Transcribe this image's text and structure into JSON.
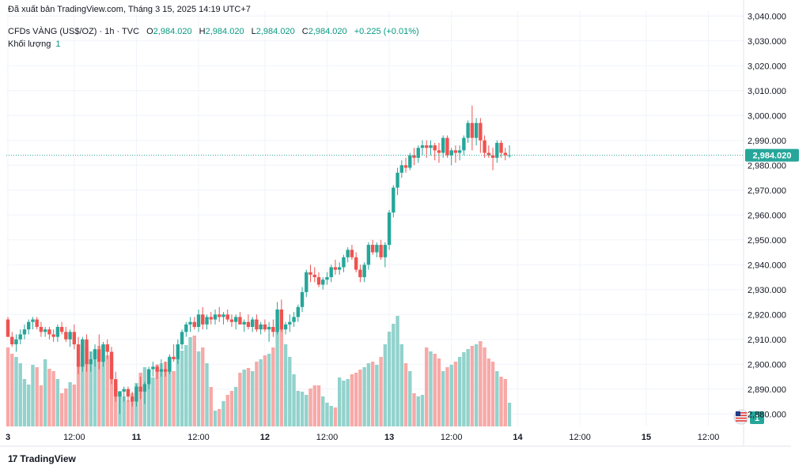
{
  "header": {
    "published": "Đã xuất bản TradingView.com, Tháng 3 15, 2025 14:19 UTC+7",
    "symbol": "CFDs VÀNG (US$/OZ) · 1h · TVC",
    "open_label": "O",
    "open": "2,984.020",
    "high_label": "H",
    "high": "2,984.020",
    "low_label": "L",
    "low": "2,984.020",
    "close_label": "C",
    "close": "2,984.020",
    "change": "+0.225 (+0.01%)",
    "volume_label": "Khối lượng",
    "volume_value": "1"
  },
  "brand": {
    "logo_glyph": "17",
    "name": "TradingView"
  },
  "chart_data": {
    "type": "candlestick",
    "y_ticks": [
      "3,040.000",
      "3,030.000",
      "3,020.000",
      "3,010.000",
      "3,000.000",
      "2,990.000",
      "2,980.000",
      "2,970.000",
      "2,960.000",
      "2,950.000",
      "2,940.000",
      "2,930.000",
      "2,920.000",
      "2,910.000",
      "2,900.000",
      "2,890.000",
      "2,880.000"
    ],
    "ylim": [
      2875,
      3042
    ],
    "x_ticks": [
      "3",
      "12:00",
      "11",
      "12:00",
      "12",
      "12:00",
      "13",
      "12:00",
      "14",
      "12:00",
      "15",
      "12:00"
    ],
    "last_price": 2984.02,
    "last_price_label": "2,984.020",
    "volume_badge": "1",
    "colors": {
      "up": "#26a69a",
      "down": "#ef5350",
      "vol_up": "#92d2cc",
      "vol_down": "#f7a9a7",
      "grid": "#f0f3fa",
      "axis_text": "#131722"
    },
    "candles": [
      [
        2918,
        2919,
        2911,
        2911
      ],
      [
        2911,
        2913,
        2907,
        2908
      ],
      [
        2908,
        2912,
        2905,
        2910
      ],
      [
        2910,
        2914,
        2908,
        2912
      ],
      [
        2912,
        2916,
        2910,
        2914
      ],
      [
        2914,
        2918,
        2912,
        2917
      ],
      [
        2917,
        2919,
        2914,
        2918
      ],
      [
        2918,
        2919,
        2914,
        2915
      ],
      [
        2915,
        2917,
        2911,
        2913
      ],
      [
        2913,
        2915,
        2911,
        2914
      ],
      [
        2914,
        2915,
        2910,
        2912
      ],
      [
        2912,
        2914,
        2909,
        2911
      ],
      [
        2911,
        2916,
        2909,
        2915
      ],
      [
        2915,
        2917,
        2912,
        2913
      ],
      [
        2913,
        2915,
        2909,
        2910
      ],
      [
        2910,
        2914,
        2907,
        2913
      ],
      [
        2913,
        2916,
        2906,
        2908
      ],
      [
        2908,
        2911,
        2896,
        2899
      ],
      [
        2899,
        2911,
        2897,
        2910
      ],
      [
        2910,
        2912,
        2897,
        2900
      ],
      [
        2900,
        2905,
        2897,
        2902
      ],
      [
        2902,
        2908,
        2899,
        2906
      ],
      [
        2906,
        2912,
        2898,
        2901
      ],
      [
        2901,
        2909,
        2899,
        2908
      ],
      [
        2908,
        2910,
        2902,
        2905
      ],
      [
        2905,
        2907,
        2892,
        2894
      ],
      [
        2894,
        2897,
        2885,
        2887
      ],
      [
        2887,
        2889,
        2880,
        2889
      ],
      [
        2889,
        2891,
        2885,
        2890
      ],
      [
        2890,
        2891,
        2885,
        2887
      ],
      [
        2887,
        2889,
        2883,
        2885
      ],
      [
        2885,
        2892,
        2883,
        2891
      ],
      [
        2891,
        2895,
        2886,
        2889
      ],
      [
        2889,
        2893,
        2884,
        2892
      ],
      [
        2892,
        2899,
        2890,
        2898
      ],
      [
        2898,
        2901,
        2895,
        2899
      ],
      [
        2899,
        2900,
        2894,
        2897
      ],
      [
        2897,
        2902,
        2895,
        2898
      ],
      [
        2898,
        2901,
        2895,
        2897
      ],
      [
        2897,
        2904,
        2896,
        2903
      ],
      [
        2903,
        2908,
        2901,
        2902
      ],
      [
        2902,
        2910,
        2900,
        2908
      ],
      [
        2908,
        2914,
        2906,
        2913
      ],
      [
        2913,
        2917,
        2911,
        2916
      ],
      [
        2916,
        2919,
        2913,
        2917
      ],
      [
        2917,
        2919,
        2914,
        2915
      ],
      [
        2915,
        2922,
        2913,
        2920
      ],
      [
        2920,
        2923,
        2914,
        2916
      ],
      [
        2916,
        2920,
        2914,
        2919
      ],
      [
        2919,
        2921,
        2916,
        2918
      ],
      [
        2918,
        2922,
        2916,
        2920
      ],
      [
        2920,
        2923,
        2917,
        2919
      ],
      [
        2919,
        2921,
        2916,
        2920
      ],
      [
        2920,
        2922,
        2917,
        2918
      ],
      [
        2918,
        2920,
        2915,
        2917
      ],
      [
        2917,
        2920,
        2914,
        2919
      ],
      [
        2919,
        2921,
        2916,
        2916
      ],
      [
        2916,
        2918,
        2913,
        2917
      ],
      [
        2917,
        2920,
        2914,
        2915
      ],
      [
        2915,
        2919,
        2913,
        2918
      ],
      [
        2918,
        2920,
        2913,
        2914
      ],
      [
        2914,
        2917,
        2912,
        2916
      ],
      [
        2916,
        2918,
        2913,
        2914
      ],
      [
        2914,
        2917,
        2909,
        2915
      ],
      [
        2915,
        2918,
        2911,
        2913
      ],
      [
        2913,
        2925,
        2912,
        2922
      ],
      [
        2922,
        2926,
        2913,
        2914
      ],
      [
        2914,
        2917,
        2912,
        2916
      ],
      [
        2916,
        2920,
        2913,
        2917
      ],
      [
        2917,
        2921,
        2915,
        2919
      ],
      [
        2919,
        2924,
        2917,
        2923
      ],
      [
        2923,
        2931,
        2921,
        2929
      ],
      [
        2929,
        2938,
        2927,
        2937
      ],
      [
        2937,
        2940,
        2933,
        2936
      ],
      [
        2936,
        2939,
        2933,
        2935
      ],
      [
        2935,
        2937,
        2931,
        2932
      ],
      [
        2932,
        2935,
        2930,
        2934
      ],
      [
        2934,
        2937,
        2932,
        2935
      ],
      [
        2935,
        2940,
        2933,
        2939
      ],
      [
        2939,
        2942,
        2936,
        2938
      ],
      [
        2938,
        2941,
        2936,
        2939
      ],
      [
        2939,
        2944,
        2937,
        2943
      ],
      [
        2943,
        2947,
        2941,
        2946
      ],
      [
        2946,
        2948,
        2942,
        2943
      ],
      [
        2943,
        2945,
        2937,
        2938
      ],
      [
        2938,
        2940,
        2933,
        2935
      ],
      [
        2935,
        2941,
        2933,
        2940
      ],
      [
        2940,
        2949,
        2938,
        2948
      ],
      [
        2948,
        2950,
        2944,
        2945
      ],
      [
        2945,
        2949,
        2943,
        2948
      ],
      [
        2948,
        2950,
        2942,
        2943
      ],
      [
        2943,
        2949,
        2939,
        2948
      ],
      [
        2948,
        2962,
        2946,
        2961
      ],
      [
        2961,
        2972,
        2959,
        2971
      ],
      [
        2971,
        2979,
        2968,
        2977
      ],
      [
        2977,
        2982,
        2975,
        2980
      ],
      [
        2980,
        2983,
        2977,
        2979
      ],
      [
        2979,
        2985,
        2978,
        2984
      ],
      [
        2984,
        2987,
        2980,
        2983
      ],
      [
        2983,
        2988,
        2981,
        2987
      ],
      [
        2987,
        2990,
        2984,
        2988
      ],
      [
        2988,
        2990,
        2983,
        2987
      ],
      [
        2987,
        2990,
        2984,
        2988
      ],
      [
        2988,
        2989,
        2982,
        2986
      ],
      [
        2986,
        2989,
        2981,
        2985
      ],
      [
        2985,
        2992,
        2983,
        2991
      ],
      [
        2991,
        2992,
        2983,
        2984
      ],
      [
        2984,
        2987,
        2980,
        2986
      ],
      [
        2986,
        2988,
        2981,
        2985
      ],
      [
        2985,
        2988,
        2982,
        2986
      ],
      [
        2986,
        2992,
        2984,
        2991
      ],
      [
        2991,
        2998,
        2989,
        2997
      ],
      [
        2997,
        3004,
        2986,
        2991
      ],
      [
        2991,
        2999,
        2988,
        2997
      ],
      [
        2997,
        2999,
        2985,
        2990
      ],
      [
        2990,
        2992,
        2983,
        2985
      ],
      [
        2985,
        2988,
        2983,
        2984
      ],
      [
        2984,
        2987,
        2978,
        2983
      ],
      [
        2983,
        2990,
        2981,
        2989
      ],
      [
        2989,
        2990,
        2983,
        2985
      ],
      [
        2985,
        2987,
        2982,
        2984
      ],
      [
        2984,
        2988,
        2983,
        2984
      ]
    ],
    "volumes": [
      100,
      92,
      88,
      80,
      60,
      53,
      78,
      75,
      52,
      85,
      73,
      70,
      60,
      42,
      48,
      56,
      53,
      80,
      93,
      100,
      95,
      98,
      102,
      103,
      90,
      88,
      50,
      45,
      38,
      33,
      42,
      55,
      68,
      75,
      60,
      62,
      78,
      80,
      82,
      86,
      70,
      85,
      96,
      103,
      113,
      115,
      95,
      100,
      80,
      50,
      20,
      22,
      32,
      40,
      45,
      50,
      68,
      72,
      74,
      70,
      82,
      85,
      90,
      92,
      100,
      120,
      124,
      104,
      88,
      66,
      45,
      44,
      40,
      48,
      52,
      52,
      38,
      30,
      26,
      24,
      62,
      58,
      60,
      66,
      68,
      72,
      75,
      80,
      82,
      78,
      88,
      104,
      120,
      130,
      140,
      104,
      80,
      70,
      42,
      38,
      40,
      100,
      95,
      92,
      86,
      70,
      75,
      78,
      82,
      88,
      94,
      98,
      102,
      104,
      108,
      100,
      86,
      82,
      70,
      63,
      60,
      30,
      22
    ]
  }
}
